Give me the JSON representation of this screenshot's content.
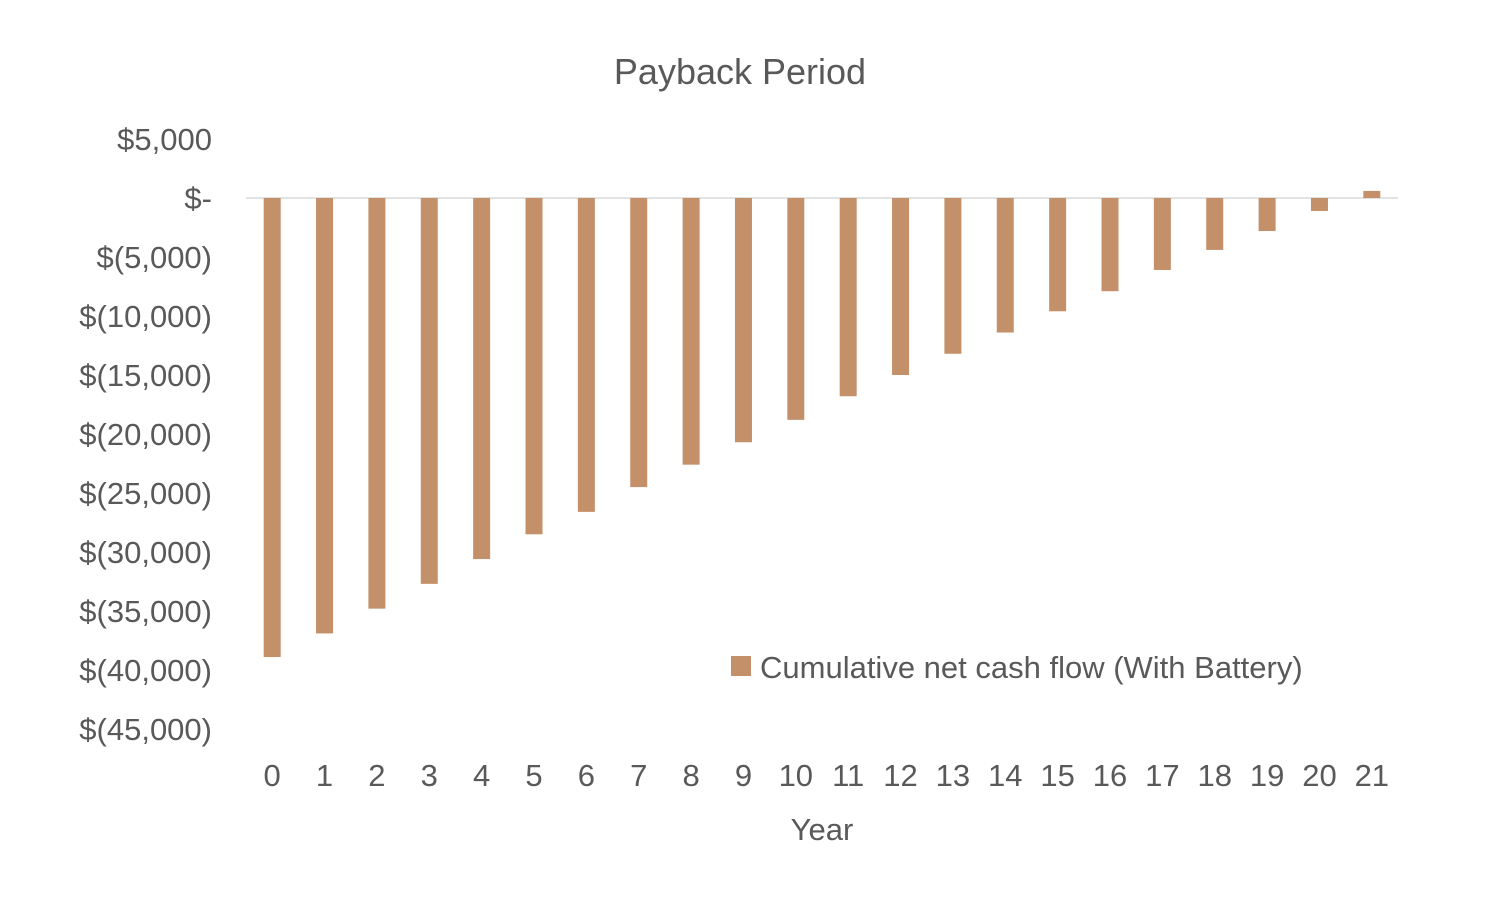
{
  "chart_data": {
    "type": "bar",
    "title": "Payback Period",
    "xlabel": "Year",
    "ylabel": "",
    "ylim": [
      -45000,
      5000
    ],
    "y_ticks": [
      5000,
      0,
      -5000,
      -10000,
      -15000,
      -20000,
      -25000,
      -30000,
      -35000,
      -40000,
      -45000
    ],
    "y_tick_labels": [
      "$5,000",
      "$-",
      "$(5,000)",
      "$(10,000)",
      "$(15,000)",
      "$(20,000)",
      "$(25,000)",
      "$(30,000)",
      "$(35,000)",
      "$(40,000)",
      "$(45,000)"
    ],
    "categories": [
      "0",
      "1",
      "2",
      "3",
      "4",
      "5",
      "6",
      "7",
      "8",
      "9",
      "10",
      "11",
      "12",
      "13",
      "14",
      "15",
      "16",
      "17",
      "18",
      "19",
      "20",
      "21"
    ],
    "series": [
      {
        "name": "Cumulative net cash flow (With Battery)",
        "color": "#c4906a",
        "values": [
          -38900,
          -36900,
          -34800,
          -32700,
          -30600,
          -28500,
          -26600,
          -24500,
          -22600,
          -20700,
          -18800,
          -16800,
          -15000,
          -13200,
          -11400,
          -9600,
          -7900,
          -6100,
          -4400,
          -2800,
          -1100,
          600
        ]
      }
    ],
    "grid": false,
    "legend_position": "bottom-right",
    "colors": {
      "text": "#595959",
      "axis_line": "#d9d9d9",
      "bar": "#c4906a"
    }
  }
}
